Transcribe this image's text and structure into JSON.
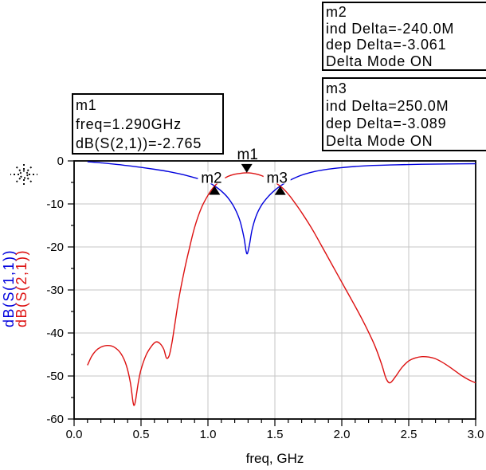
{
  "window": {
    "background": "#ffffff"
  },
  "annotations": {
    "m1_box": {
      "lines": [
        "m1",
        "freq=1.290GHz",
        "dB(S(2,1))=-2.765"
      ]
    },
    "m2_box": {
      "lines": [
        "m2",
        "ind Delta=-240.0M",
        "dep Delta=-3.061",
        "Delta Mode ON"
      ]
    },
    "m3_box": {
      "lines": [
        "m3",
        "ind Delta=250.0M",
        "dep Delta=-3.089",
        "Delta Mode ON"
      ]
    }
  },
  "chart_data": {
    "type": "line",
    "title": "",
    "xlabel": "freq, GHz",
    "x_range": [
      0.0,
      3.0
    ],
    "x_major_ticks": [
      0.0,
      0.5,
      1.0,
      1.5,
      2.0,
      2.5,
      3.0
    ],
    "x_tick_labels": [
      "0.0",
      "0.5",
      "1.0",
      "1.5",
      "2.0",
      "2.5",
      "3.0"
    ],
    "x_minor_step": 0.1,
    "y_range": [
      -60,
      0
    ],
    "y_major_ticks": [
      0,
      -10,
      -20,
      -30,
      -40,
      -50,
      -60
    ],
    "y_tick_labels": [
      "0",
      "-10",
      "-20",
      "-30",
      "-40",
      "-50",
      "-60"
    ],
    "y_minor_step": 5,
    "grid": true,
    "grid_color": "#c6c6c6",
    "frame_color": "#000000",
    "y_axis_labels": [
      {
        "text": "dB(S(1,1))",
        "color": "#0000dd"
      },
      {
        "text": "dB(S(2,1))",
        "color": "#dd1111"
      }
    ],
    "series": [
      {
        "name": "dB(S(1,1))",
        "color": "#0000dd",
        "points": [
          [
            0.1,
            -0.2
          ],
          [
            0.2,
            -0.45
          ],
          [
            0.3,
            -0.75
          ],
          [
            0.4,
            -1.1
          ],
          [
            0.5,
            -1.5
          ],
          [
            0.6,
            -1.95
          ],
          [
            0.7,
            -2.45
          ],
          [
            0.8,
            -3.1
          ],
          [
            0.9,
            -3.9
          ],
          [
            0.95,
            -4.35
          ],
          [
            1.0,
            -4.9
          ],
          [
            1.05,
            -5.83
          ],
          [
            1.1,
            -7.0
          ],
          [
            1.15,
            -8.6
          ],
          [
            1.2,
            -11.0
          ],
          [
            1.24,
            -14.0
          ],
          [
            1.27,
            -18.0
          ],
          [
            1.285,
            -21.0
          ],
          [
            1.295,
            -21.5
          ],
          [
            1.31,
            -19.5
          ],
          [
            1.33,
            -16.0
          ],
          [
            1.36,
            -12.8
          ],
          [
            1.4,
            -10.3
          ],
          [
            1.45,
            -8.3
          ],
          [
            1.5,
            -6.8
          ],
          [
            1.54,
            -5.85
          ],
          [
            1.6,
            -4.7
          ],
          [
            1.66,
            -3.8
          ],
          [
            1.72,
            -3.1
          ],
          [
            1.8,
            -2.45
          ],
          [
            1.9,
            -1.9
          ],
          [
            2.0,
            -1.55
          ],
          [
            2.1,
            -1.3
          ],
          [
            2.2,
            -1.1
          ],
          [
            2.4,
            -0.9
          ],
          [
            2.6,
            -0.78
          ],
          [
            2.8,
            -0.7
          ],
          [
            3.0,
            -0.65
          ]
        ]
      },
      {
        "name": "dB(S(2,1))",
        "color": "#dd1111",
        "points": [
          [
            0.1,
            -47.5
          ],
          [
            0.13,
            -45.5
          ],
          [
            0.16,
            -44.2
          ],
          [
            0.2,
            -43.3
          ],
          [
            0.25,
            -42.9
          ],
          [
            0.3,
            -43.3
          ],
          [
            0.35,
            -44.8
          ],
          [
            0.39,
            -47.5
          ],
          [
            0.42,
            -51.5
          ],
          [
            0.44,
            -56.0
          ],
          [
            0.45,
            -56.8
          ],
          [
            0.46,
            -55.5
          ],
          [
            0.48,
            -51.5
          ],
          [
            0.5,
            -48.5
          ],
          [
            0.54,
            -45.0
          ],
          [
            0.58,
            -43.0
          ],
          [
            0.61,
            -42.1
          ],
          [
            0.64,
            -42.4
          ],
          [
            0.67,
            -43.8
          ],
          [
            0.69,
            -45.8
          ],
          [
            0.71,
            -45.3
          ],
          [
            0.73,
            -42.5
          ],
          [
            0.75,
            -38.5
          ],
          [
            0.78,
            -32.5
          ],
          [
            0.82,
            -26.0
          ],
          [
            0.86,
            -20.5
          ],
          [
            0.9,
            -15.5
          ],
          [
            0.95,
            -11.0
          ],
          [
            1.0,
            -8.0
          ],
          [
            1.05,
            -5.83
          ],
          [
            1.1,
            -4.5
          ],
          [
            1.15,
            -3.6
          ],
          [
            1.2,
            -3.1
          ],
          [
            1.25,
            -2.85
          ],
          [
            1.29,
            -2.765
          ],
          [
            1.33,
            -2.85
          ],
          [
            1.38,
            -3.2
          ],
          [
            1.43,
            -3.8
          ],
          [
            1.48,
            -4.6
          ],
          [
            1.54,
            -5.85
          ],
          [
            1.58,
            -7.0
          ],
          [
            1.62,
            -8.5
          ],
          [
            1.66,
            -10.2
          ],
          [
            1.7,
            -12.0
          ],
          [
            1.75,
            -14.4
          ],
          [
            1.8,
            -17.0
          ],
          [
            1.85,
            -19.8
          ],
          [
            1.9,
            -22.6
          ],
          [
            1.95,
            -25.4
          ],
          [
            2.0,
            -28.2
          ],
          [
            2.05,
            -31.0
          ],
          [
            2.1,
            -33.8
          ],
          [
            2.15,
            -36.7
          ],
          [
            2.2,
            -39.8
          ],
          [
            2.25,
            -43.2
          ],
          [
            2.3,
            -47.5
          ],
          [
            2.33,
            -50.5
          ],
          [
            2.36,
            -51.6
          ],
          [
            2.4,
            -50.2
          ],
          [
            2.45,
            -48.0
          ],
          [
            2.5,
            -46.5
          ],
          [
            2.55,
            -45.8
          ],
          [
            2.6,
            -45.5
          ],
          [
            2.65,
            -45.6
          ],
          [
            2.7,
            -46.0
          ],
          [
            2.75,
            -46.8
          ],
          [
            2.8,
            -47.8
          ],
          [
            2.85,
            -48.9
          ],
          [
            2.9,
            -50.0
          ],
          [
            2.95,
            -50.9
          ],
          [
            3.0,
            -51.6
          ]
        ]
      }
    ],
    "markers": [
      {
        "label": "m1",
        "freq": 1.29,
        "value": -2.765,
        "shape": "triangle-down",
        "series": "dB(S(2,1))"
      },
      {
        "label": "m2",
        "freq": 1.05,
        "value": -5.83,
        "shape": "triangle-up",
        "series": "dB(S(2,1))"
      },
      {
        "label": "m3",
        "freq": 1.54,
        "value": -5.85,
        "shape": "triangle-up",
        "series": "dB(S(2,1))"
      }
    ]
  }
}
